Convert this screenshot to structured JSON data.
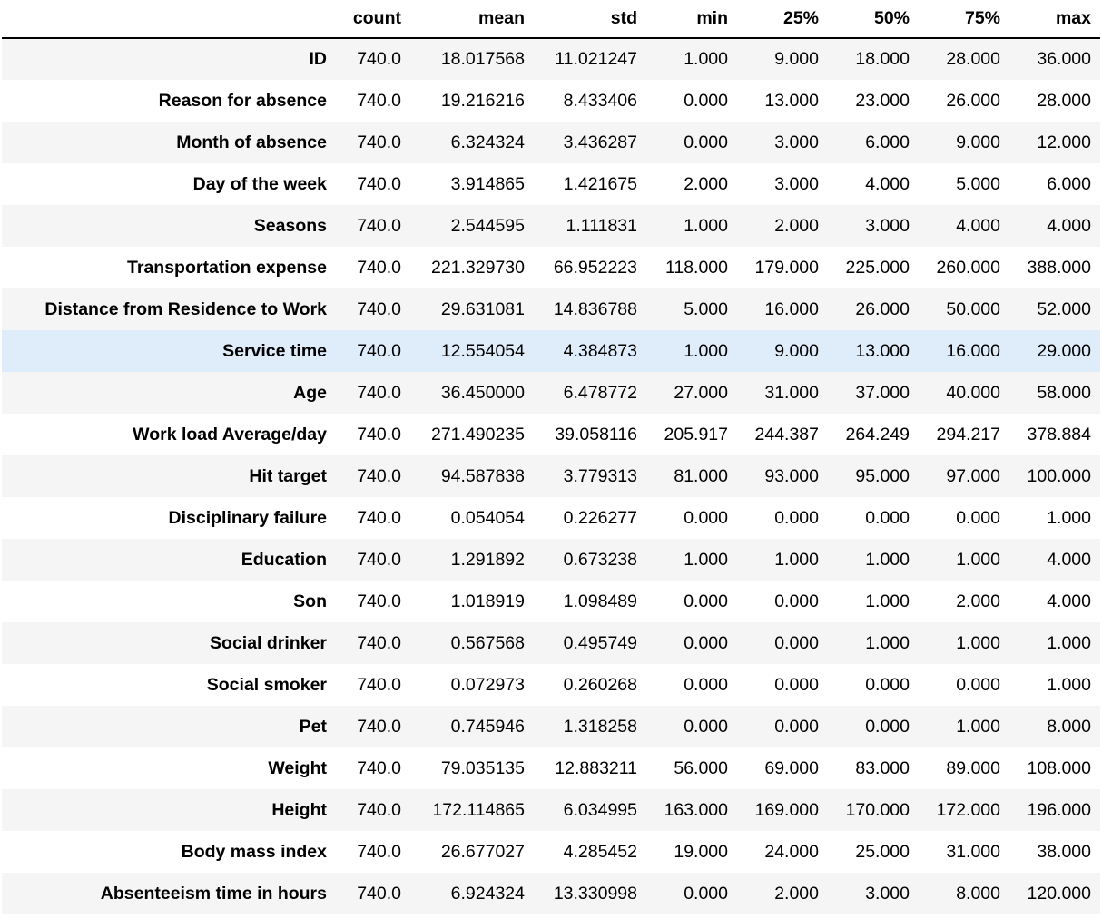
{
  "table": {
    "columns": [
      "count",
      "mean",
      "std",
      "min",
      "25%",
      "50%",
      "75%",
      "max"
    ],
    "highlighted_row": "Service time",
    "rows": [
      {
        "label": "ID",
        "values": [
          "740.0",
          "18.017568",
          "11.021247",
          "1.000",
          "9.000",
          "18.000",
          "28.000",
          "36.000"
        ]
      },
      {
        "label": "Reason for absence",
        "values": [
          "740.0",
          "19.216216",
          "8.433406",
          "0.000",
          "13.000",
          "23.000",
          "26.000",
          "28.000"
        ]
      },
      {
        "label": "Month of absence",
        "values": [
          "740.0",
          "6.324324",
          "3.436287",
          "0.000",
          "3.000",
          "6.000",
          "9.000",
          "12.000"
        ]
      },
      {
        "label": "Day of the week",
        "values": [
          "740.0",
          "3.914865",
          "1.421675",
          "2.000",
          "3.000",
          "4.000",
          "5.000",
          "6.000"
        ]
      },
      {
        "label": "Seasons",
        "values": [
          "740.0",
          "2.544595",
          "1.111831",
          "1.000",
          "2.000",
          "3.000",
          "4.000",
          "4.000"
        ]
      },
      {
        "label": "Transportation expense",
        "values": [
          "740.0",
          "221.329730",
          "66.952223",
          "118.000",
          "179.000",
          "225.000",
          "260.000",
          "388.000"
        ]
      },
      {
        "label": "Distance from Residence to Work",
        "values": [
          "740.0",
          "29.631081",
          "14.836788",
          "5.000",
          "16.000",
          "26.000",
          "50.000",
          "52.000"
        ]
      },
      {
        "label": "Service time",
        "values": [
          "740.0",
          "12.554054",
          "4.384873",
          "1.000",
          "9.000",
          "13.000",
          "16.000",
          "29.000"
        ]
      },
      {
        "label": "Age",
        "values": [
          "740.0",
          "36.450000",
          "6.478772",
          "27.000",
          "31.000",
          "37.000",
          "40.000",
          "58.000"
        ]
      },
      {
        "label": "Work load Average/day",
        "values": [
          "740.0",
          "271.490235",
          "39.058116",
          "205.917",
          "244.387",
          "264.249",
          "294.217",
          "378.884"
        ]
      },
      {
        "label": "Hit target",
        "values": [
          "740.0",
          "94.587838",
          "3.779313",
          "81.000",
          "93.000",
          "95.000",
          "97.000",
          "100.000"
        ]
      },
      {
        "label": "Disciplinary failure",
        "values": [
          "740.0",
          "0.054054",
          "0.226277",
          "0.000",
          "0.000",
          "0.000",
          "0.000",
          "1.000"
        ]
      },
      {
        "label": "Education",
        "values": [
          "740.0",
          "1.291892",
          "0.673238",
          "1.000",
          "1.000",
          "1.000",
          "1.000",
          "4.000"
        ]
      },
      {
        "label": "Son",
        "values": [
          "740.0",
          "1.018919",
          "1.098489",
          "0.000",
          "0.000",
          "1.000",
          "2.000",
          "4.000"
        ]
      },
      {
        "label": "Social drinker",
        "values": [
          "740.0",
          "0.567568",
          "0.495749",
          "0.000",
          "0.000",
          "1.000",
          "1.000",
          "1.000"
        ]
      },
      {
        "label": "Social smoker",
        "values": [
          "740.0",
          "0.072973",
          "0.260268",
          "0.000",
          "0.000",
          "0.000",
          "0.000",
          "1.000"
        ]
      },
      {
        "label": "Pet",
        "values": [
          "740.0",
          "0.745946",
          "1.318258",
          "0.000",
          "0.000",
          "0.000",
          "1.000",
          "8.000"
        ]
      },
      {
        "label": "Weight",
        "values": [
          "740.0",
          "79.035135",
          "12.883211",
          "56.000",
          "69.000",
          "83.000",
          "89.000",
          "108.000"
        ]
      },
      {
        "label": "Height",
        "values": [
          "740.0",
          "172.114865",
          "6.034995",
          "163.000",
          "169.000",
          "170.000",
          "172.000",
          "196.000"
        ]
      },
      {
        "label": "Body mass index",
        "values": [
          "740.0",
          "26.677027",
          "4.285452",
          "19.000",
          "24.000",
          "25.000",
          "31.000",
          "38.000"
        ]
      },
      {
        "label": "Absenteeism time in hours",
        "values": [
          "740.0",
          "6.924324",
          "13.330998",
          "0.000",
          "2.000",
          "3.000",
          "8.000",
          "120.000"
        ]
      }
    ]
  }
}
